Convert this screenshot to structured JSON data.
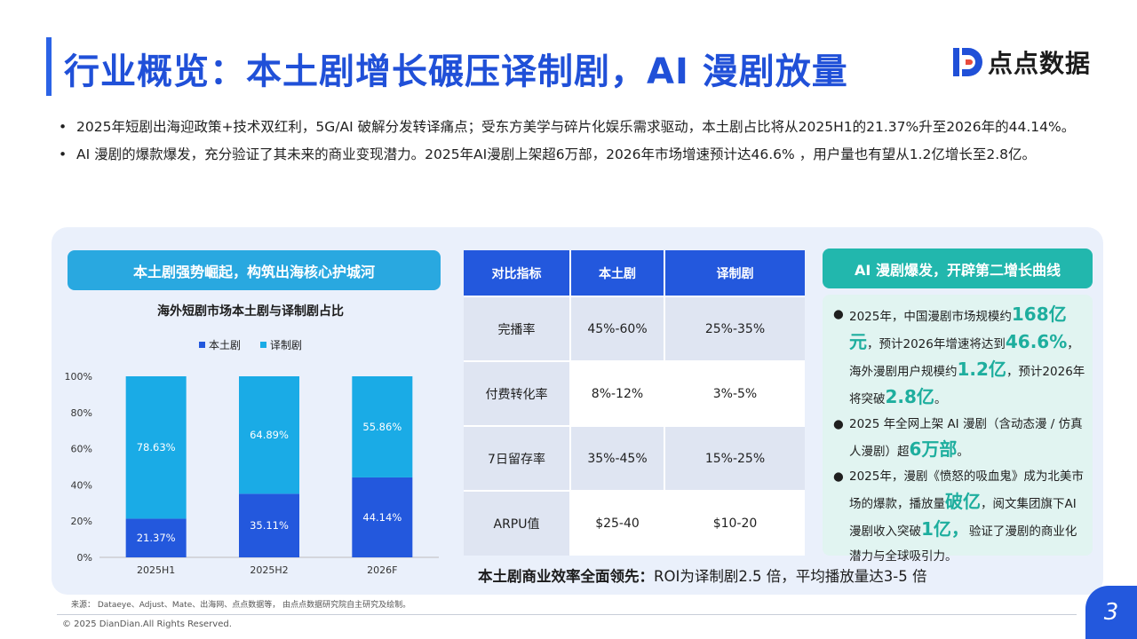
{
  "header": {
    "title": "行业概览：本土剧增长碾压译制剧，AI 漫剧放量",
    "brand_name": "点点数据",
    "brand_mark_icon": "dd-logo-icon",
    "accent_color": "#2050d8"
  },
  "bullets": [
    "2025年短剧出海迎政策+技术双红利，5G/AI 破解分发转译痛点；受东方美学与碎片化娱乐需求驱动，本土剧占比将从2025H1的21.37%升至2026年的44.14%。",
    "AI 漫剧的爆款爆发，充分验证了其未来的商业变现潜力。2025年AI漫剧上架超6万部，2026年市场增速预计达46.6% ，用户量也有望从1.2亿增长至2.8亿。"
  ],
  "left_section": {
    "heading": "本土剧强势崛起，构筑出海核心护城河"
  },
  "chart_data": {
    "type": "bar",
    "stacked": true,
    "percent": true,
    "title": "海外短剧市场本土剧与译制剧占比",
    "categories": [
      "2025H1",
      "2025H2",
      "2026F"
    ],
    "series": [
      {
        "name": "本土剧",
        "color": "#2358dd",
        "values": [
          21.37,
          35.11,
          44.14
        ],
        "labels": [
          "21.37%",
          "35.11%",
          "44.14%"
        ]
      },
      {
        "name": "译制剧",
        "color": "#1aabe6",
        "values": [
          78.63,
          64.89,
          55.86
        ],
        "labels": [
          "78.63%",
          "64.89%",
          "55.86%"
        ]
      }
    ],
    "y_ticks": [
      "0%",
      "20%",
      "40%",
      "60%",
      "80%",
      "100%"
    ],
    "ylim": [
      0,
      100
    ],
    "legend_position": "top-center",
    "grid": false
  },
  "table": {
    "headers": [
      "对比指标",
      "本土剧",
      "译制剧"
    ],
    "rows": [
      [
        "完播率",
        "45%-60%",
        "25%-35%"
      ],
      [
        "付费转化率",
        "8%-12%",
        "3%-5%"
      ],
      [
        "7日留存率",
        "35%-45%",
        "15%-25%"
      ],
      [
        "ARPU值",
        "$25-40",
        "$10-20"
      ]
    ],
    "note_bold": "本土剧商业效率全面领先：",
    "note_text": "ROI为译制剧2.5 倍，平均播放量达3-5 倍"
  },
  "right_section": {
    "heading": "AI 漫剧爆发，开辟第二增长曲线",
    "highlight_color": "#1eae9e",
    "items": [
      {
        "t1": "2025年，中国漫剧市场规模约",
        "h1": "168亿元",
        "t2": "，预计2026年增速将达到",
        "h2": "46.6%",
        "t3": "，海外漫剧用户规模约",
        "h3": "1.2亿",
        "t4": "，预计2026年将突破",
        "h4": "2.8亿",
        "t5": "。"
      },
      {
        "t1": "2025 年全网上架 AI 漫剧（含动态漫 / 仿真人漫剧）超",
        "h1": "6万部",
        "t2": "。"
      },
      {
        "t1": "2025年，漫剧《愤怒的吸血鬼》成为北美市场的爆款，播放量",
        "h1": "破亿",
        "t2": "，阅文集团旗下AI漫剧收入突破",
        "h2": "1亿，",
        "t3": "验证了漫剧的商业化潜力与全球吸引力。"
      }
    ]
  },
  "footer": {
    "source": "来源： Dataeye、Adjust、Mate、出海网、点点数据等， 由点点数据研究院自主研究及绘制。",
    "copyright": "© 2025 DianDian.All Rights Reserved.",
    "page_number": "3"
  }
}
